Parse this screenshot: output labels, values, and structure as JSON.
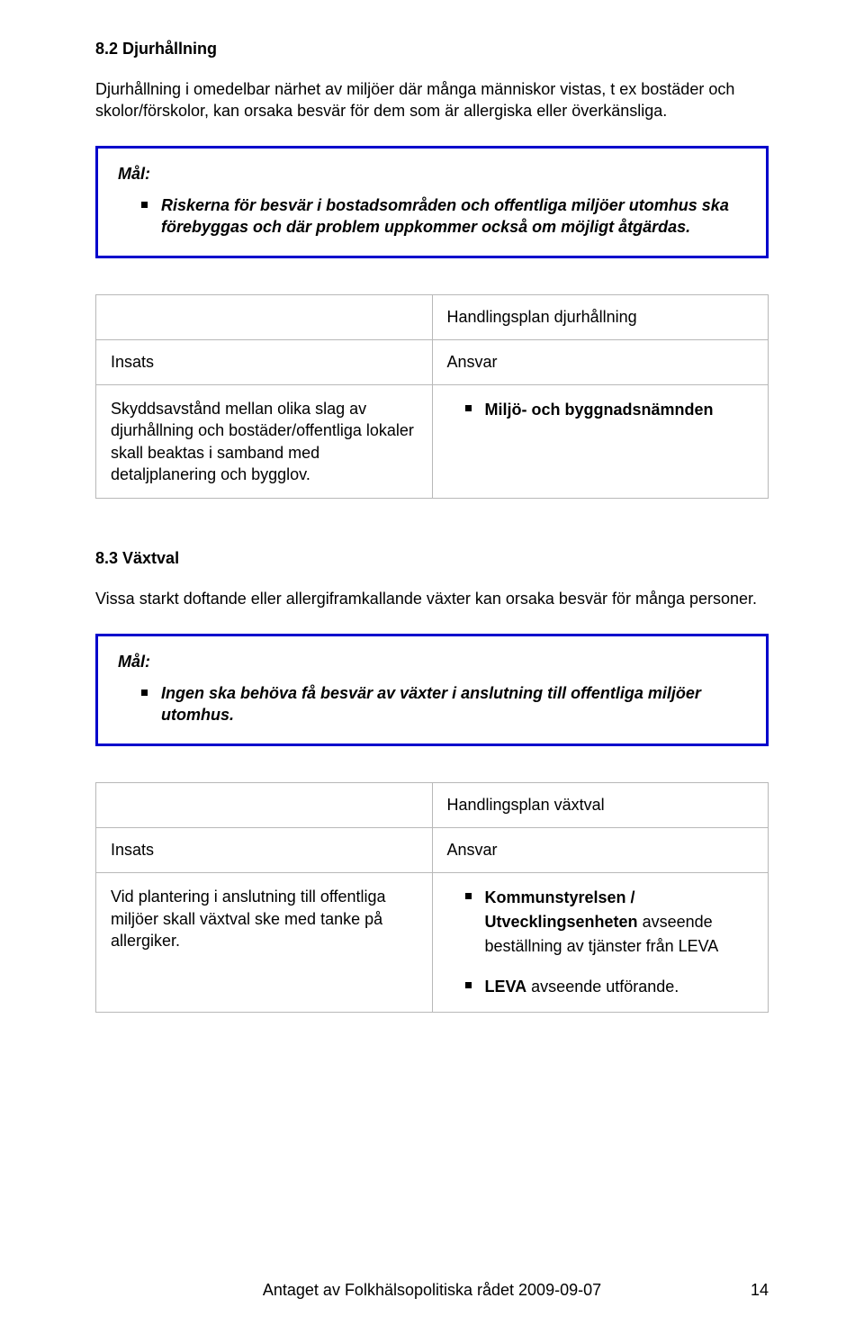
{
  "section1": {
    "heading": "8.2 Djurhållning",
    "paragraph": "Djurhållning i omedelbar närhet av miljöer där många människor vistas, t ex bostäder och skolor/förskolor, kan orsaka besvär för dem som är allergiska eller överkänsliga.",
    "goal_label": "Mål:",
    "goal_item": "Riskerna för besvär i bostadsområden och offentliga miljöer utomhus ska förebyggas och där problem uppkommer också om möjligt åtgärdas.",
    "plan_title": "Handlingsplan djurhållning",
    "col_insats": "Insats",
    "col_ansvar": "Ansvar",
    "insats_text": "Skyddsavstånd mellan olika slag av djurhållning och bostäder/offentliga lokaler skall beaktas i samband med detaljplanering och bygglov.",
    "ansvar_item": "Miljö- och byggnadsnämnden"
  },
  "section2": {
    "heading": "8.3 Växtval",
    "paragraph": "Vissa starkt doftande eller allergiframkallande växter kan orsaka besvär för många personer.",
    "goal_label": "Mål:",
    "goal_item": "Ingen ska behöva få besvär av växter i anslutning till offentliga miljöer utomhus.",
    "plan_title": "Handlingsplan växtval",
    "col_insats": "Insats",
    "col_ansvar": "Ansvar",
    "insats_text": "Vid plantering i anslutning till offentliga miljöer skall växtval ske med tanke på allergiker.",
    "ansvar_item1_bold": "Kommunstyrelsen / Utvecklingsenheten",
    "ansvar_item1_rest": " avseende beställning av tjänster från LEVA",
    "ansvar_item2_bold": "LEVA",
    "ansvar_item2_rest": " avseende utförande."
  },
  "footer": {
    "text": "Antaget av Folkhälsopolitiska rådet 2009-09-07",
    "page": "14"
  },
  "colors": {
    "goal_border": "#0000cc",
    "table_border": "#b8b8b8",
    "text": "#000000",
    "background": "#ffffff"
  }
}
